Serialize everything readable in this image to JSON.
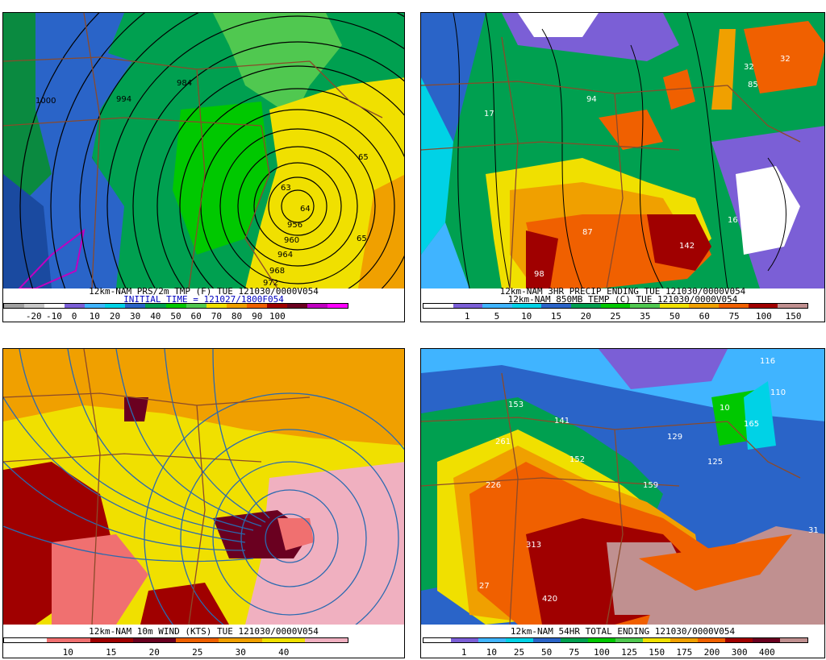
{
  "panels": [
    {
      "id": "tl",
      "title_line1": "12km-NAM PRS/2m TMP (F) TUE 121030/0000V054",
      "title_line2": "INITIAL TIME = 121027/1800F054",
      "colorbar": [
        "#a0a0a0",
        "#c8c8c8",
        "#ffffff",
        "#7b5fd6",
        "#40b4ff",
        "#00d2e6",
        "#2a64c8",
        "#00a050",
        "#00c800",
        "#50c850",
        "#f0e000",
        "#f0a000",
        "#f06000",
        "#a00000",
        "#6a0020",
        "#c000c0",
        "#ff00ff"
      ],
      "ticks": [
        "-20",
        "-10",
        "0",
        "10",
        "20",
        "30",
        "40",
        "50",
        "60",
        "70",
        "80",
        "90",
        "100"
      ],
      "map_labels": [
        "956",
        "960",
        "964",
        "968",
        "972",
        "984",
        "994",
        "1000",
        "63",
        "65",
        "65",
        "64"
      ]
    },
    {
      "id": "tr",
      "title_line1": "12km-NAM 3HR PRECIP ENDING TUE 121030/0000V054",
      "title_line2": "12km-NAM 850MB TEMP (C) TUE 121030/0000V054",
      "colorbar": [
        "#ffffff",
        "#7b5fd6",
        "#40b4ff",
        "#00d2e6",
        "#2a64c8",
        "#00a050",
        "#00c800",
        "#50c850",
        "#f0e000",
        "#f0a000",
        "#f06000",
        "#a00000",
        "#c09090"
      ],
      "ticks": [
        "1",
        "5",
        "10",
        "15",
        "20",
        "25",
        "35",
        "50",
        "60",
        "75",
        "100",
        "150"
      ],
      "map_labels": [
        "142",
        "87",
        "98",
        "94",
        "32",
        "32",
        "85",
        "17",
        "16"
      ]
    },
    {
      "id": "bl",
      "title_line1": "12km-NAM 10m WIND (KTS) TUE 121030/0000V054",
      "title_line2": "",
      "colorbar": [
        "#ffffff",
        "#f07070",
        "#a00000",
        "#6a0020",
        "#f06000",
        "#f0a000",
        "#f0e000",
        "#f0b0c0"
      ],
      "ticks": [
        "10",
        "15",
        "20",
        "25",
        "30",
        "40"
      ],
      "map_labels": []
    },
    {
      "id": "br",
      "title_line1": "12km-NAM 54HR TOTAL ENDING 121030/0000V054",
      "title_line2": "",
      "colorbar": [
        "#ffffff",
        "#7b5fd6",
        "#40b4ff",
        "#00d2e6",
        "#2a64c8",
        "#00a050",
        "#00c800",
        "#50c850",
        "#f0e000",
        "#f0a000",
        "#f06000",
        "#a00000",
        "#6a0020",
        "#c09090"
      ],
      "ticks": [
        "1",
        "10",
        "25",
        "50",
        "75",
        "100",
        "125",
        "150",
        "175",
        "200",
        "300",
        "400"
      ],
      "map_labels": [
        "261",
        "226",
        "313",
        "420",
        "141",
        "152",
        "129",
        "125",
        "116",
        "110",
        "165",
        "31",
        "159",
        "153",
        "10",
        "27"
      ]
    }
  ]
}
